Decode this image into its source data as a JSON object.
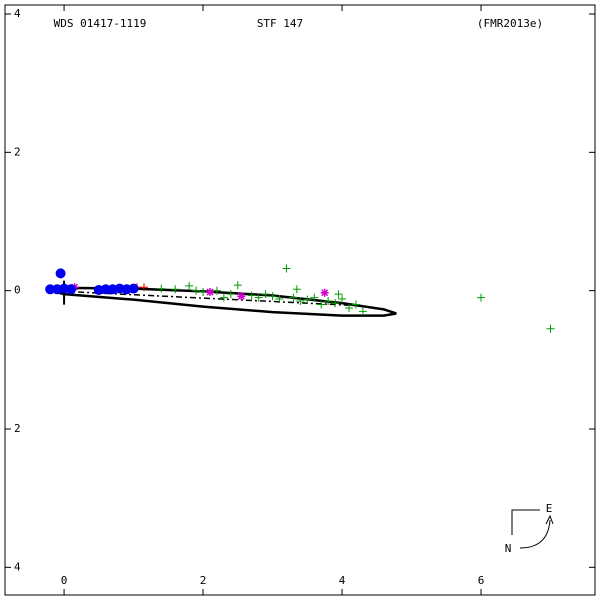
{
  "chart_data": {
    "type": "orbit",
    "title": "WDS 01417-1119",
    "subtitle": "STF 147",
    "reference": "(FMR2013e)",
    "compass": {
      "north": "N",
      "east": "E"
    },
    "xlim": [
      -0.85,
      7.64
    ],
    "ylim": [
      -4.4,
      4.13
    ],
    "xticks": [
      0,
      2,
      4,
      6
    ],
    "yticks": [
      4,
      2,
      0,
      {
        "value": -2,
        "label": "2"
      },
      {
        "value": -4,
        "label": "4"
      }
    ],
    "orbit": {
      "color": "#000000",
      "x": [
        -0.2,
        0,
        1,
        2,
        3,
        4,
        4.6,
        4.78,
        4.6,
        4,
        3,
        2,
        1,
        0,
        -0.2
      ],
      "y": [
        0.0,
        0.04,
        0.03,
        -0.01,
        -0.07,
        -0.18,
        -0.27,
        -0.33,
        -0.36,
        -0.36,
        -0.31,
        -0.23,
        -0.13,
        -0.05,
        0.0
      ]
    },
    "node_line": {
      "color": "#000000",
      "x": [
        -0.2,
        4.3
      ],
      "y": [
        0.0,
        -0.22
      ]
    },
    "series": [
      {
        "color": "#009900",
        "marker": "plus",
        "x": [
          1.4,
          1.6,
          1.8,
          1.9,
          2.0,
          2.2,
          2.4,
          2.5,
          2.7,
          2.8,
          3.0,
          3.1,
          3.2,
          3.3,
          3.4,
          3.5,
          3.6,
          3.7,
          3.8,
          3.9,
          4.0,
          4.1,
          4.2,
          4.3,
          2.3,
          2.9,
          3.35,
          3.95,
          6.0,
          7.0
        ],
        "y": [
          0.03,
          0.02,
          0.07,
          0.0,
          -0.02,
          0.0,
          -0.05,
          0.08,
          -0.07,
          -0.1,
          -0.08,
          -0.12,
          0.32,
          -0.1,
          -0.15,
          -0.13,
          -0.1,
          -0.2,
          -0.15,
          -0.18,
          -0.12,
          -0.25,
          -0.2,
          -0.3,
          -0.1,
          -0.05,
          0.02,
          -0.05,
          -0.1,
          -0.55
        ]
      },
      {
        "color": "#cc00cc",
        "marker": "star",
        "x": [
          0.15,
          2.1,
          2.55,
          3.75
        ],
        "y": [
          0.05,
          -0.02,
          -0.08,
          -0.03
        ]
      },
      {
        "color": "#dd0000",
        "marker": "plus",
        "x": [
          1.05,
          1.15
        ],
        "y": [
          0.05,
          0.05
        ]
      },
      {
        "color": "#0000ee",
        "marker": "circle",
        "x": [
          -0.2,
          -0.1,
          0.0,
          0.1,
          0.5,
          0.6,
          0.7,
          0.8,
          0.9,
          1.0,
          -0.05
        ],
        "y": [
          0.02,
          0.02,
          0.03,
          0.02,
          0.01,
          0.02,
          0.02,
          0.03,
          0.02,
          0.03,
          0.25
        ]
      }
    ]
  }
}
